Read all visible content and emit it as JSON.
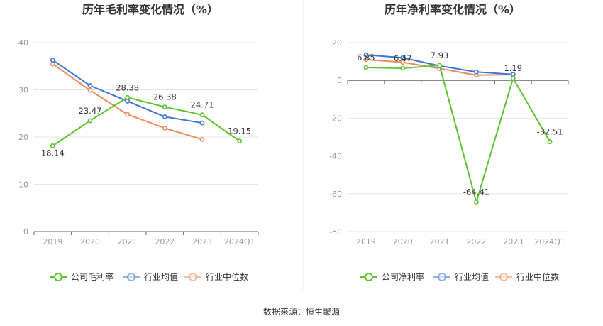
{
  "source_text": "数据来源：恒生聚源",
  "colors": {
    "company": "#5cc42f",
    "avg": "#3d77d8",
    "median": "#f08a5d",
    "grid": "#e6e6e6",
    "axis": "#666666"
  },
  "chart_data": [
    {
      "type": "line",
      "title": "历年毛利率变化情况（%）",
      "categories": [
        "2019",
        "2020",
        "2021",
        "2022",
        "2023",
        "2024Q1"
      ],
      "ylim": [
        0,
        40
      ],
      "yticks": [
        0,
        10,
        20,
        30,
        40
      ],
      "series": [
        {
          "name": "公司毛利率",
          "key": "company",
          "values": [
            18.14,
            23.47,
            28.38,
            26.38,
            24.71,
            19.15
          ],
          "labels": [
            "18.14",
            "23.47",
            "28.38",
            "26.38",
            "24.71",
            "19.15"
          ]
        },
        {
          "name": "行业均值",
          "key": "avg",
          "values": [
            36.3,
            30.9,
            27.6,
            24.3,
            23.0,
            null
          ]
        },
        {
          "name": "行业中位数",
          "key": "median",
          "values": [
            35.5,
            29.9,
            24.8,
            21.9,
            19.5,
            null
          ]
        }
      ]
    },
    {
      "type": "line",
      "title": "历年净利率变化情况（%）",
      "categories": [
        "2019",
        "2020",
        "2021",
        "2022",
        "2023",
        "2024Q1"
      ],
      "ylim": [
        -80,
        20
      ],
      "yticks": [
        -80,
        -60,
        -40,
        -20,
        0,
        20
      ],
      "series": [
        {
          "name": "公司净利率",
          "key": "company",
          "values": [
            6.85,
            6.47,
            7.93,
            -64.41,
            1.19,
            -32.51
          ],
          "labels": [
            "6.85",
            "6.47",
            "7.93",
            "-64.41",
            "1.19",
            "-32.51"
          ]
        },
        {
          "name": "行业均值",
          "key": "avg",
          "values": [
            13.5,
            12.0,
            7.7,
            4.5,
            3.2,
            null
          ]
        },
        {
          "name": "行业中位数",
          "key": "median",
          "values": [
            11.0,
            9.6,
            6.3,
            2.8,
            3.1,
            null
          ]
        }
      ]
    }
  ]
}
